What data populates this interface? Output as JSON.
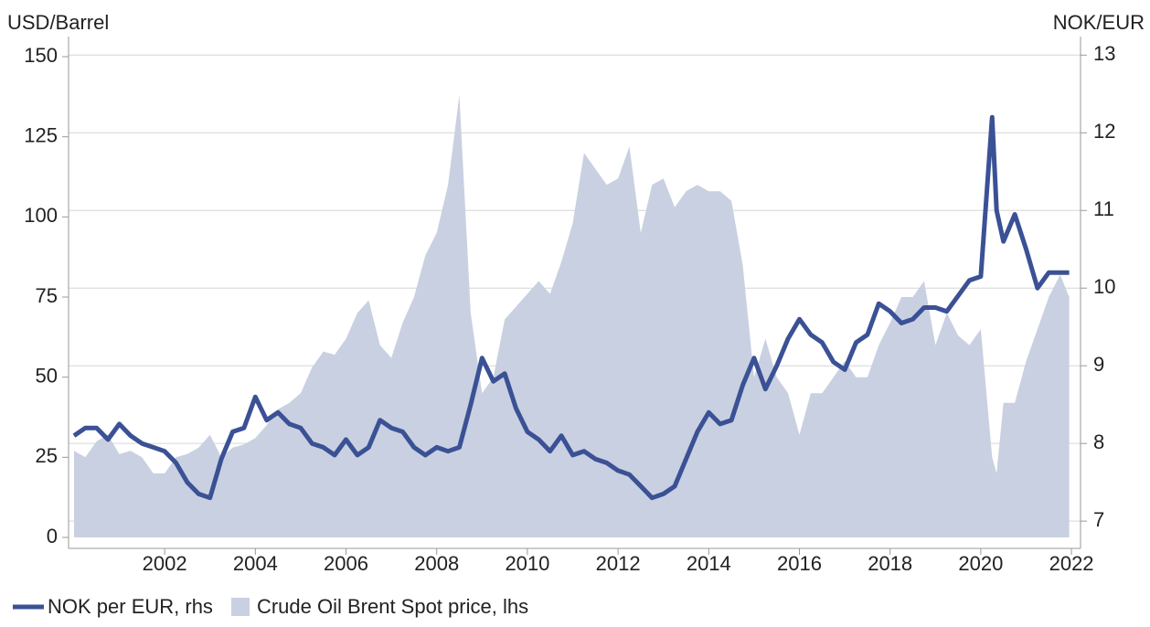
{
  "chart_data": {
    "type": "line",
    "y_label": "USD/Barrel",
    "y2_label": "NOK/EUR",
    "x": [
      2000.0,
      2000.25,
      2000.5,
      2000.75,
      2001.0,
      2001.25,
      2001.5,
      2001.75,
      2002.0,
      2002.25,
      2002.5,
      2002.75,
      2003.0,
      2003.25,
      2003.5,
      2003.75,
      2004.0,
      2004.25,
      2004.5,
      2004.75,
      2005.0,
      2005.25,
      2005.5,
      2005.75,
      2006.0,
      2006.25,
      2006.5,
      2006.75,
      2007.0,
      2007.25,
      2007.5,
      2007.75,
      2008.0,
      2008.25,
      2008.5,
      2008.75,
      2009.0,
      2009.25,
      2009.5,
      2009.75,
      2010.0,
      2010.25,
      2010.5,
      2010.75,
      2011.0,
      2011.25,
      2011.5,
      2011.75,
      2012.0,
      2012.25,
      2012.5,
      2012.75,
      2013.0,
      2013.25,
      2013.5,
      2013.75,
      2014.0,
      2014.25,
      2014.5,
      2014.75,
      2015.0,
      2015.25,
      2015.5,
      2015.75,
      2016.0,
      2016.25,
      2016.5,
      2016.75,
      2017.0,
      2017.25,
      2017.5,
      2017.75,
      2018.0,
      2018.25,
      2018.5,
      2018.75,
      2019.0,
      2019.25,
      2019.5,
      2019.75,
      2020.0,
      2020.25,
      2020.35,
      2020.5,
      2020.75,
      2021.0,
      2021.25,
      2021.5,
      2021.75,
      2021.95
    ],
    "series": [
      {
        "name": "Crude Oil Brent Spot price, lhs",
        "type": "area",
        "color": "#c9d0e1",
        "values": [
          27,
          25,
          30,
          32,
          26,
          27,
          25,
          20,
          20,
          25,
          26,
          28,
          32,
          25,
          28,
          29,
          31,
          35,
          40,
          42,
          45,
          53,
          58,
          57,
          62,
          70,
          74,
          60,
          56,
          67,
          75,
          88,
          95,
          110,
          138,
          70,
          45,
          50,
          68,
          72,
          76,
          80,
          76,
          86,
          98,
          120,
          115,
          110,
          112,
          122,
          95,
          110,
          112,
          103,
          108,
          110,
          108,
          108,
          105,
          85,
          50,
          62,
          50,
          45,
          32,
          45,
          45,
          50,
          55,
          50,
          50,
          60,
          67,
          75,
          75,
          80,
          60,
          70,
          63,
          60,
          65,
          25,
          20,
          42,
          42,
          55,
          65,
          75,
          82,
          75
        ]
      },
      {
        "name": "NOK per EUR, rhs",
        "type": "line",
        "axis": "y2",
        "color": "#3b5195",
        "values": [
          8.1,
          8.2,
          8.2,
          8.05,
          8.25,
          8.1,
          8.0,
          7.95,
          7.9,
          7.75,
          7.5,
          7.35,
          7.3,
          7.8,
          8.15,
          8.2,
          8.6,
          8.3,
          8.4,
          8.25,
          8.2,
          8.0,
          7.95,
          7.85,
          8.05,
          7.85,
          7.95,
          8.3,
          8.2,
          8.15,
          7.95,
          7.85,
          7.95,
          7.9,
          7.95,
          8.5,
          9.1,
          8.8,
          8.9,
          8.45,
          8.15,
          8.05,
          7.9,
          8.1,
          7.85,
          7.9,
          7.8,
          7.75,
          7.65,
          7.6,
          7.45,
          7.3,
          7.35,
          7.45,
          7.8,
          8.15,
          8.4,
          8.25,
          8.3,
          8.75,
          9.1,
          8.7,
          9.0,
          9.35,
          9.6,
          9.4,
          9.3,
          9.05,
          8.95,
          9.3,
          9.4,
          9.8,
          9.7,
          9.55,
          9.6,
          9.75,
          9.75,
          9.7,
          9.9,
          10.1,
          10.15,
          12.2,
          11.0,
          10.6,
          10.95,
          10.5,
          10.0,
          10.2,
          10.2,
          10.2
        ]
      }
    ],
    "xlim": [
      1999.88,
      2022.2
    ],
    "xticks": [
      2002,
      2004,
      2006,
      2008,
      2010,
      2012,
      2014,
      2016,
      2018,
      2020,
      2022
    ],
    "ylim": [
      0,
      150
    ],
    "yticks": [
      0,
      25,
      50,
      75,
      100,
      125,
      150
    ],
    "y2lim": [
      6.79,
      12.98
    ],
    "y2ticks": [
      7,
      8,
      9,
      10,
      11,
      12,
      13
    ],
    "grid": true
  }
}
